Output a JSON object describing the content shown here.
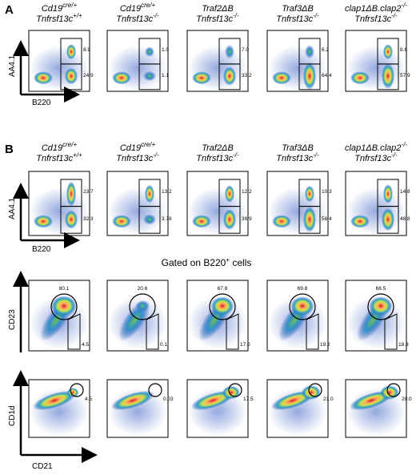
{
  "panel_a": {
    "letter": "A",
    "genotypes": [
      {
        "line1": "Cd19",
        "line1_sup": "cre/+",
        "line2": "Tnfrsf13c",
        "line2_sup": "+/+"
      },
      {
        "line1": "Cd19",
        "line1_sup": "cre/+",
        "line2": "Tnfrsf13c",
        "line2_sup": "-/-"
      },
      {
        "line1": "Traf2ΔB",
        "line1_sup": "",
        "line2": "Tnfrsf13c",
        "line2_sup": "-/-"
      },
      {
        "line1": "Traf3ΔB",
        "line1_sup": "",
        "line2": "Tnfrsf13c",
        "line2_sup": "-/-"
      },
      {
        "line1": "clap1ΔB.clap2",
        "line1_sup": "-/-",
        "line2": "Tnfrsf13c",
        "line2_sup": "-/-"
      }
    ],
    "y_axis_label": "AA4.1",
    "x_axis_label": "B220",
    "values": [
      {
        "upper": "8.9",
        "lower": "24.9"
      },
      {
        "upper": "1.0",
        "lower": "1.1"
      },
      {
        "upper": "7.0",
        "lower": "33.2"
      },
      {
        "upper": "6.2",
        "lower": "64.4"
      },
      {
        "upper": "8.6",
        "lower": "57.9"
      }
    ]
  },
  "panel_b": {
    "letter": "B",
    "genotypes": [
      {
        "line1": "Cd19",
        "line1_sup": "cre/+",
        "line2": "Tnfrsf13c",
        "line2_sup": "+/+"
      },
      {
        "line1": "Cd19",
        "line1_sup": "cre/+",
        "line2": "Tnfrsf13c",
        "line2_sup": "-/-"
      },
      {
        "line1": "Traf2ΔB",
        "line1_sup": "",
        "line2": "Tnfrsf13c",
        "line2_sup": "-/-"
      },
      {
        "line1": "Traf3ΔB",
        "line1_sup": "",
        "line2": "Tnfrsf13c",
        "line2_sup": "-/-"
      },
      {
        "line1": "clap1ΔB.clap2",
        "line1_sup": "-/-",
        "line2": "Tnfrsf13c",
        "line2_sup": "-/-"
      }
    ],
    "row1": {
      "y_axis_label": "AA4.1",
      "x_axis_label": "B220",
      "values": [
        {
          "upper": "23.7",
          "lower": "32.3"
        },
        {
          "upper": "13.2",
          "lower": "3.78"
        },
        {
          "upper": "12.2",
          "lower": "39.9"
        },
        {
          "upper": "10.3",
          "lower": "58.4"
        },
        {
          "upper": "14.8",
          "lower": "48.8"
        }
      ]
    },
    "gated_title": "Gated on B220",
    "gated_title_sup": "+",
    "gated_title_suffix": " cells",
    "row2": {
      "y_axis_label": "CD23",
      "values": [
        {
          "circle": "80.1",
          "box": "4.5"
        },
        {
          "circle": "20.6",
          "box": "0.1"
        },
        {
          "circle": "67.8",
          "box": "17.0"
        },
        {
          "circle": "69.8",
          "box": "19.2"
        },
        {
          "circle": "68.5",
          "box": "18.8"
        }
      ]
    },
    "row3": {
      "y_axis_label": "CD1d",
      "x_axis_label": "CD21",
      "values": [
        "4.5",
        "0.03",
        "17.5",
        "21.0",
        "20.0"
      ]
    }
  }
}
